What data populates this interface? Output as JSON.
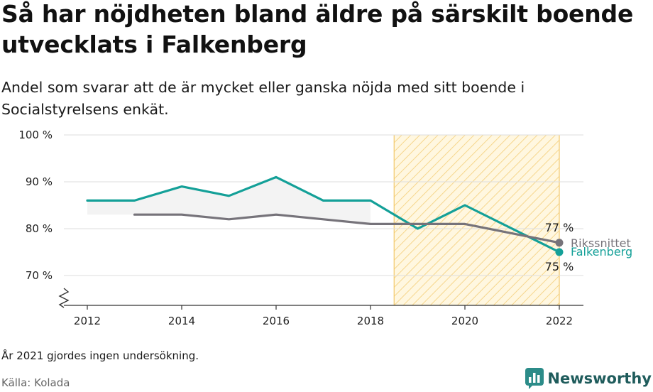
{
  "header": {
    "title": "Så har nöjdheten bland äldre på särskilt boende utvecklats i Falkenberg",
    "subtitle": "Andel som svarar att de är mycket eller ganska nöjda med sitt boende i Socialstyrelsens enkät."
  },
  "footer": {
    "note": "År 2021 gjordes ingen undersökning.",
    "source": "Källa: Kolada",
    "brand": "Newsworthy"
  },
  "chart_data": {
    "type": "line",
    "xlim": [
      2012,
      2022
    ],
    "ylim": [
      70,
      100
    ],
    "x_ticks": [
      2012,
      2014,
      2016,
      2018,
      2020,
      2022
    ],
    "y_ticks": [
      70,
      80,
      90,
      100
    ],
    "y_tick_suffix": " %",
    "axis_break": true,
    "grid": true,
    "highlight_range": [
      2018.5,
      2022
    ],
    "series": [
      {
        "name": "Falkenberg",
        "color": "#14a098",
        "x": [
          2012,
          2013,
          2014,
          2015,
          2016,
          2017,
          2018,
          2019,
          2020,
          2022
        ],
        "values": [
          86,
          86,
          89,
          87,
          91,
          86,
          86,
          80,
          85,
          75
        ],
        "end_label": "75 %"
      },
      {
        "name": "Rikssnittet",
        "color": "#76737a",
        "x": [
          2013,
          2014,
          2015,
          2016,
          2017,
          2018,
          2019,
          2020,
          2022
        ],
        "values": [
          83,
          83,
          82,
          83,
          82,
          81,
          81,
          81,
          77
        ],
        "end_label": "77 %"
      }
    ]
  }
}
